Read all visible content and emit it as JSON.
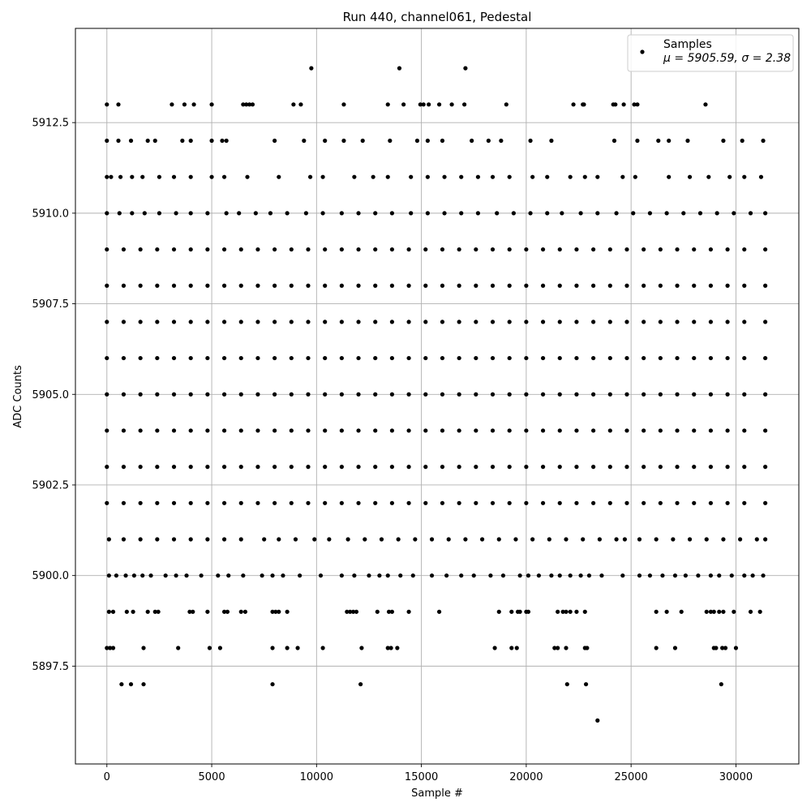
{
  "chart_data": {
    "type": "scatter",
    "title": "Run 440, channel061, Pedestal",
    "xlabel": "Sample #",
    "ylabel": "ADC Counts",
    "xlim": [
      -1500,
      33000
    ],
    "ylim": [
      5894.8,
      5915.1
    ],
    "xticks": [
      0,
      5000,
      10000,
      15000,
      20000,
      25000,
      30000
    ],
    "xtick_labels": [
      "0",
      "5000",
      "10000",
      "15000",
      "20000",
      "25000",
      "30000"
    ],
    "yticks": [
      5897.5,
      5900.0,
      5902.5,
      5905.0,
      5907.5,
      5910.0,
      5912.5
    ],
    "ytick_labels": [
      "5897.5",
      "5900.0",
      "5902.5",
      "5905.0",
      "5907.5",
      "5910.0",
      "5912.5"
    ],
    "grid": true,
    "legend": {
      "placement": "top-right",
      "entries": [
        {
          "label": "Samples",
          "sublabel": "μ = 5905.59, σ = 2.38"
        }
      ]
    },
    "marker_color": "#000000",
    "series": [
      {
        "name": "Samples",
        "sample_range": [
          0,
          31400
        ],
        "levels": [
          {
            "y": 5914,
            "x": [
              9750,
              13950,
              17100
            ]
          },
          {
            "y": 5913,
            "x": [
              0,
              550,
              3100,
              3700,
              4150,
              5000,
              6500,
              6650,
              6800,
              6950,
              8900,
              9250,
              11300,
              13400,
              14150,
              14950,
              15100,
              15350,
              15850,
              16450,
              17050,
              19050,
              22250,
              22700,
              22750,
              24150,
              24250,
              24650,
              25150,
              25300,
              28550
            ]
          },
          {
            "y": 5912,
            "x": [
              0,
              550,
              1150,
              1950,
              2300,
              3600,
              4000,
              5000,
              5500,
              5700,
              8000,
              9400,
              10400,
              11300,
              12200,
              13500,
              14800,
              15300,
              16000,
              17400,
              18200,
              18800,
              20200,
              21200,
              24200,
              25300,
              26300,
              26800,
              27700,
              29400,
              30300,
              31300
            ]
          },
          {
            "y": 5911,
            "x": [
              0,
              200,
              650,
              1200,
              1700,
              2500,
              3200,
              4000,
              5000,
              5600,
              6700,
              8200,
              9700,
              10300,
              11800,
              12700,
              13400,
              14500,
              15300,
              16100,
              16900,
              17700,
              18400,
              19200,
              20300,
              21000,
              22100,
              22800,
              23400,
              24600,
              25200,
              26800,
              27800,
              28700,
              29700,
              30400,
              31200
            ]
          },
          {
            "y": 5910,
            "x": [
              0,
              600,
              1200,
              1800,
              2500,
              3300,
              4000,
              4800,
              5700,
              6300,
              7100,
              7800,
              8600,
              9500,
              10300,
              11200,
              12000,
              12800,
              13600,
              14500,
              15300,
              16100,
              16900,
              17700,
              18600,
              19400,
              20200,
              21000,
              21700,
              22600,
              23400,
              24300,
              25100,
              25900,
              26700,
              27500,
              28300,
              29100,
              29900,
              30700,
              31400
            ]
          },
          {
            "y": 5909,
            "x": [
              0,
              800,
              1600,
              2400,
              3200,
              4000,
              4800,
              5600,
              6400,
              7200,
              8000,
              8800,
              9600,
              10400,
              11200,
              12000,
              12800,
              13600,
              14400,
              15200,
              16000,
              16800,
              17600,
              18400,
              19200,
              20000,
              20800,
              21600,
              22400,
              23200,
              24000,
              24800,
              25600,
              26400,
              27200,
              28000,
              28800,
              29600,
              30400,
              31400
            ]
          },
          {
            "y": 5908,
            "x": [
              0,
              800,
              1600,
              2400,
              3200,
              4000,
              4800,
              5600,
              6400,
              7200,
              8000,
              8800,
              9600,
              10400,
              11200,
              12000,
              12800,
              13600,
              14400,
              15200,
              16000,
              16800,
              17600,
              18400,
              19200,
              20000,
              20800,
              21600,
              22400,
              23200,
              24000,
              24800,
              25600,
              26400,
              27200,
              28000,
              28800,
              29600,
              30400,
              31400
            ]
          },
          {
            "y": 5907,
            "x": [
              0,
              800,
              1600,
              2400,
              3200,
              4000,
              4800,
              5600,
              6400,
              7200,
              8000,
              8800,
              9600,
              10400,
              11200,
              12000,
              12800,
              13600,
              14400,
              15200,
              16000,
              16800,
              17600,
              18400,
              19200,
              20000,
              20800,
              21600,
              22400,
              23200,
              24000,
              24800,
              25600,
              26400,
              27200,
              28000,
              28800,
              29600,
              30400,
              31400
            ]
          },
          {
            "y": 5906,
            "x": [
              0,
              800,
              1600,
              2400,
              3200,
              4000,
              4800,
              5600,
              6400,
              7200,
              8000,
              8800,
              9600,
              10400,
              11200,
              12000,
              12800,
              13600,
              14400,
              15200,
              16000,
              16800,
              17600,
              18400,
              19200,
              20000,
              20800,
              21600,
              22400,
              23200,
              24000,
              24800,
              25600,
              26400,
              27200,
              28000,
              28800,
              29600,
              30400,
              31400
            ]
          },
          {
            "y": 5905,
            "x": [
              0,
              800,
              1600,
              2400,
              3200,
              4000,
              4800,
              5600,
              6400,
              7200,
              8000,
              8800,
              9600,
              10400,
              11200,
              12000,
              12800,
              13600,
              14400,
              15200,
              16000,
              16800,
              17600,
              18400,
              19200,
              20000,
              20800,
              21600,
              22400,
              23200,
              24000,
              24800,
              25600,
              26400,
              27200,
              28000,
              28800,
              29600,
              30400,
              31400
            ]
          },
          {
            "y": 5904,
            "x": [
              0,
              800,
              1600,
              2400,
              3200,
              4000,
              4800,
              5600,
              6400,
              7200,
              8000,
              8800,
              9600,
              10400,
              11200,
              12000,
              12800,
              13600,
              14400,
              15200,
              16000,
              16800,
              17600,
              18400,
              19200,
              20000,
              20800,
              21600,
              22400,
              23200,
              24000,
              24800,
              25600,
              26400,
              27200,
              28000,
              28800,
              29600,
              30400,
              31400
            ]
          },
          {
            "y": 5903,
            "x": [
              0,
              800,
              1600,
              2400,
              3200,
              4000,
              4800,
              5600,
              6400,
              7200,
              8000,
              8800,
              9600,
              10400,
              11200,
              12000,
              12800,
              13600,
              14400,
              15200,
              16000,
              16800,
              17600,
              18400,
              19200,
              20000,
              20800,
              21600,
              22400,
              23200,
              24000,
              24800,
              25600,
              26400,
              27200,
              28000,
              28800,
              29600,
              30400,
              31400
            ]
          },
          {
            "y": 5902,
            "x": [
              0,
              800,
              1600,
              2400,
              3200,
              4000,
              4800,
              5600,
              6400,
              7200,
              8000,
              8800,
              9600,
              10400,
              11200,
              12000,
              12800,
              13600,
              14400,
              15200,
              16000,
              16800,
              17600,
              18400,
              19200,
              20000,
              20800,
              21600,
              22400,
              23200,
              24000,
              24800,
              25600,
              26400,
              27200,
              28000,
              28800,
              29600,
              30400,
              31400
            ]
          },
          {
            "y": 5901,
            "x": [
              100,
              800,
              1600,
              2400,
              3200,
              4000,
              4800,
              5600,
              6400,
              7500,
              8200,
              9000,
              9900,
              10600,
              11500,
              12300,
              13100,
              13900,
              14700,
              15500,
              16300,
              17100,
              17900,
              18700,
              19500,
              20300,
              21100,
              21900,
              22700,
              23500,
              24300,
              24700,
              25400,
              26200,
              27000,
              27800,
              28600,
              29400,
              30200,
              31000,
              31400
            ]
          },
          {
            "y": 5900,
            "x": [
              100,
              450,
              900,
              1300,
              1700,
              2100,
              2800,
              3300,
              3800,
              4500,
              5300,
              5800,
              6500,
              7400,
              7900,
              8400,
              9200,
              10200,
              11200,
              11800,
              12500,
              13000,
              13400,
              14000,
              14600,
              15500,
              16200,
              16900,
              17500,
              18300,
              18900,
              19700,
              20100,
              20600,
              21200,
              21600,
              22100,
              22600,
              23000,
              23600,
              24600,
              25400,
              25900,
              26500,
              27100,
              27600,
              28200,
              28800,
              29200,
              29800,
              30400,
              30800,
              31300
            ]
          },
          {
            "y": 5899,
            "x": [
              100,
              300,
              950,
              1250,
              1950,
              2300,
              2450,
              3950,
              4100,
              4800,
              5600,
              5750,
              6400,
              6600,
              7900,
              8050,
              8200,
              8600,
              11450,
              11600,
              11750,
              11900,
              12900,
              13450,
              13600,
              14400,
              15850,
              18700,
              19300,
              19600,
              19700,
              20000,
              20100,
              21500,
              21750,
              21900,
              22100,
              22400,
              22800,
              26200,
              26700,
              27400,
              28600,
              28800,
              28950,
              29200,
              29400,
              29900,
              30700,
              31150
            ]
          },
          {
            "y": 5898,
            "x": [
              0,
              150,
              300,
              1750,
              3400,
              4900,
              5400,
              7900,
              8600,
              9100,
              10300,
              12150,
              13400,
              13550,
              13850,
              18500,
              19300,
              19550,
              21350,
              21500,
              21900,
              22800,
              22900,
              26200,
              27100,
              28950,
              29050,
              29350,
              29500,
              30000
            ]
          },
          {
            "y": 5897,
            "x": [
              700,
              1150,
              1750,
              7900,
              12100,
              21950,
              22850,
              29300
            ]
          },
          {
            "y": 5896,
            "x": [
              23400
            ]
          }
        ]
      }
    ]
  }
}
